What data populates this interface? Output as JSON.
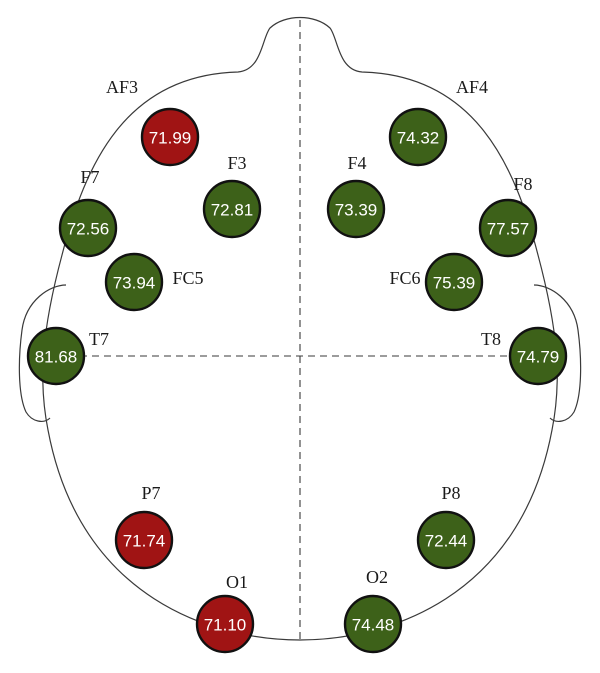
{
  "colors": {
    "high": "#3d6119",
    "low": "#a01414"
  },
  "electrodes": [
    {
      "id": "AF3",
      "value": "71.99",
      "level": "low"
    },
    {
      "id": "AF4",
      "value": "74.32",
      "level": "high"
    },
    {
      "id": "F3",
      "value": "72.81",
      "level": "high"
    },
    {
      "id": "F4",
      "value": "73.39",
      "level": "high"
    },
    {
      "id": "F7",
      "value": "72.56",
      "level": "high"
    },
    {
      "id": "F8",
      "value": "77.57",
      "level": "high"
    },
    {
      "id": "FC5",
      "value": "73.94",
      "level": "high"
    },
    {
      "id": "FC6",
      "value": "75.39",
      "level": "high"
    },
    {
      "id": "T7",
      "value": "81.68",
      "level": "high"
    },
    {
      "id": "T8",
      "value": "74.79",
      "level": "high"
    },
    {
      "id": "P7",
      "value": "71.74",
      "level": "low"
    },
    {
      "id": "P8",
      "value": "72.44",
      "level": "high"
    },
    {
      "id": "O1",
      "value": "71.10",
      "level": "low"
    },
    {
      "id": "O2",
      "value": "74.48",
      "level": "high"
    }
  ]
}
